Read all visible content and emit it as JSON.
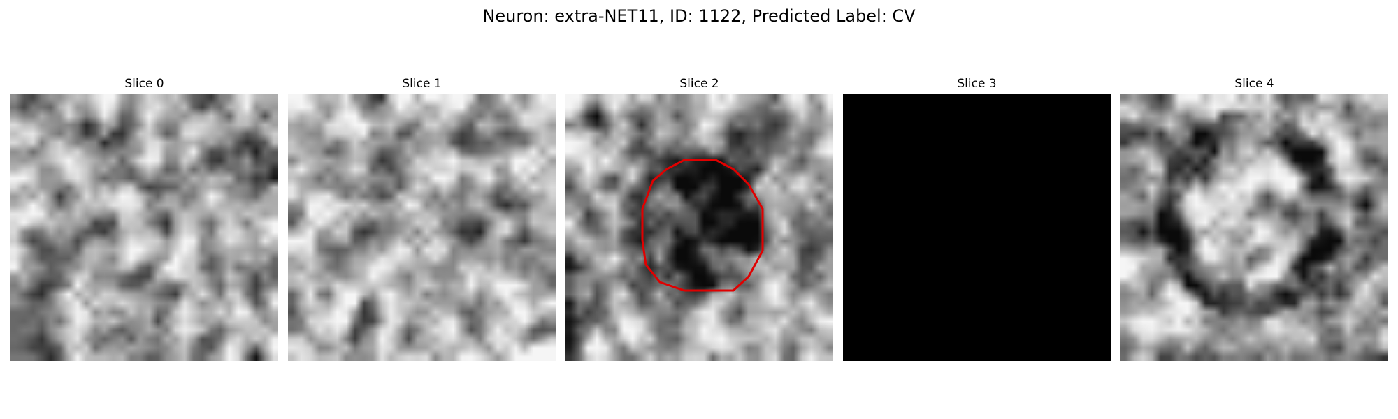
{
  "figure": {
    "title": "Neuron: extra-NET11, ID: 1122, Predicted Label: CV"
  },
  "panels": [
    {
      "title": "Slice 0",
      "style": "noise",
      "seed": 11,
      "mean": 0.62,
      "contour": false
    },
    {
      "title": "Slice 1",
      "style": "noise",
      "seed": 23,
      "mean": 0.68,
      "contour": false
    },
    {
      "title": "Slice 2",
      "style": "noise-ring",
      "seed": 37,
      "mean": 0.6,
      "contour": true
    },
    {
      "title": "Slice 3",
      "style": "black",
      "seed": 0,
      "mean": 0.0,
      "contour": false
    },
    {
      "title": "Slice 4",
      "style": "noise-annulus",
      "seed": 51,
      "mean": 0.6,
      "contour": false
    }
  ],
  "colors": {
    "contour": "#e00000",
    "background": "#ffffff"
  }
}
